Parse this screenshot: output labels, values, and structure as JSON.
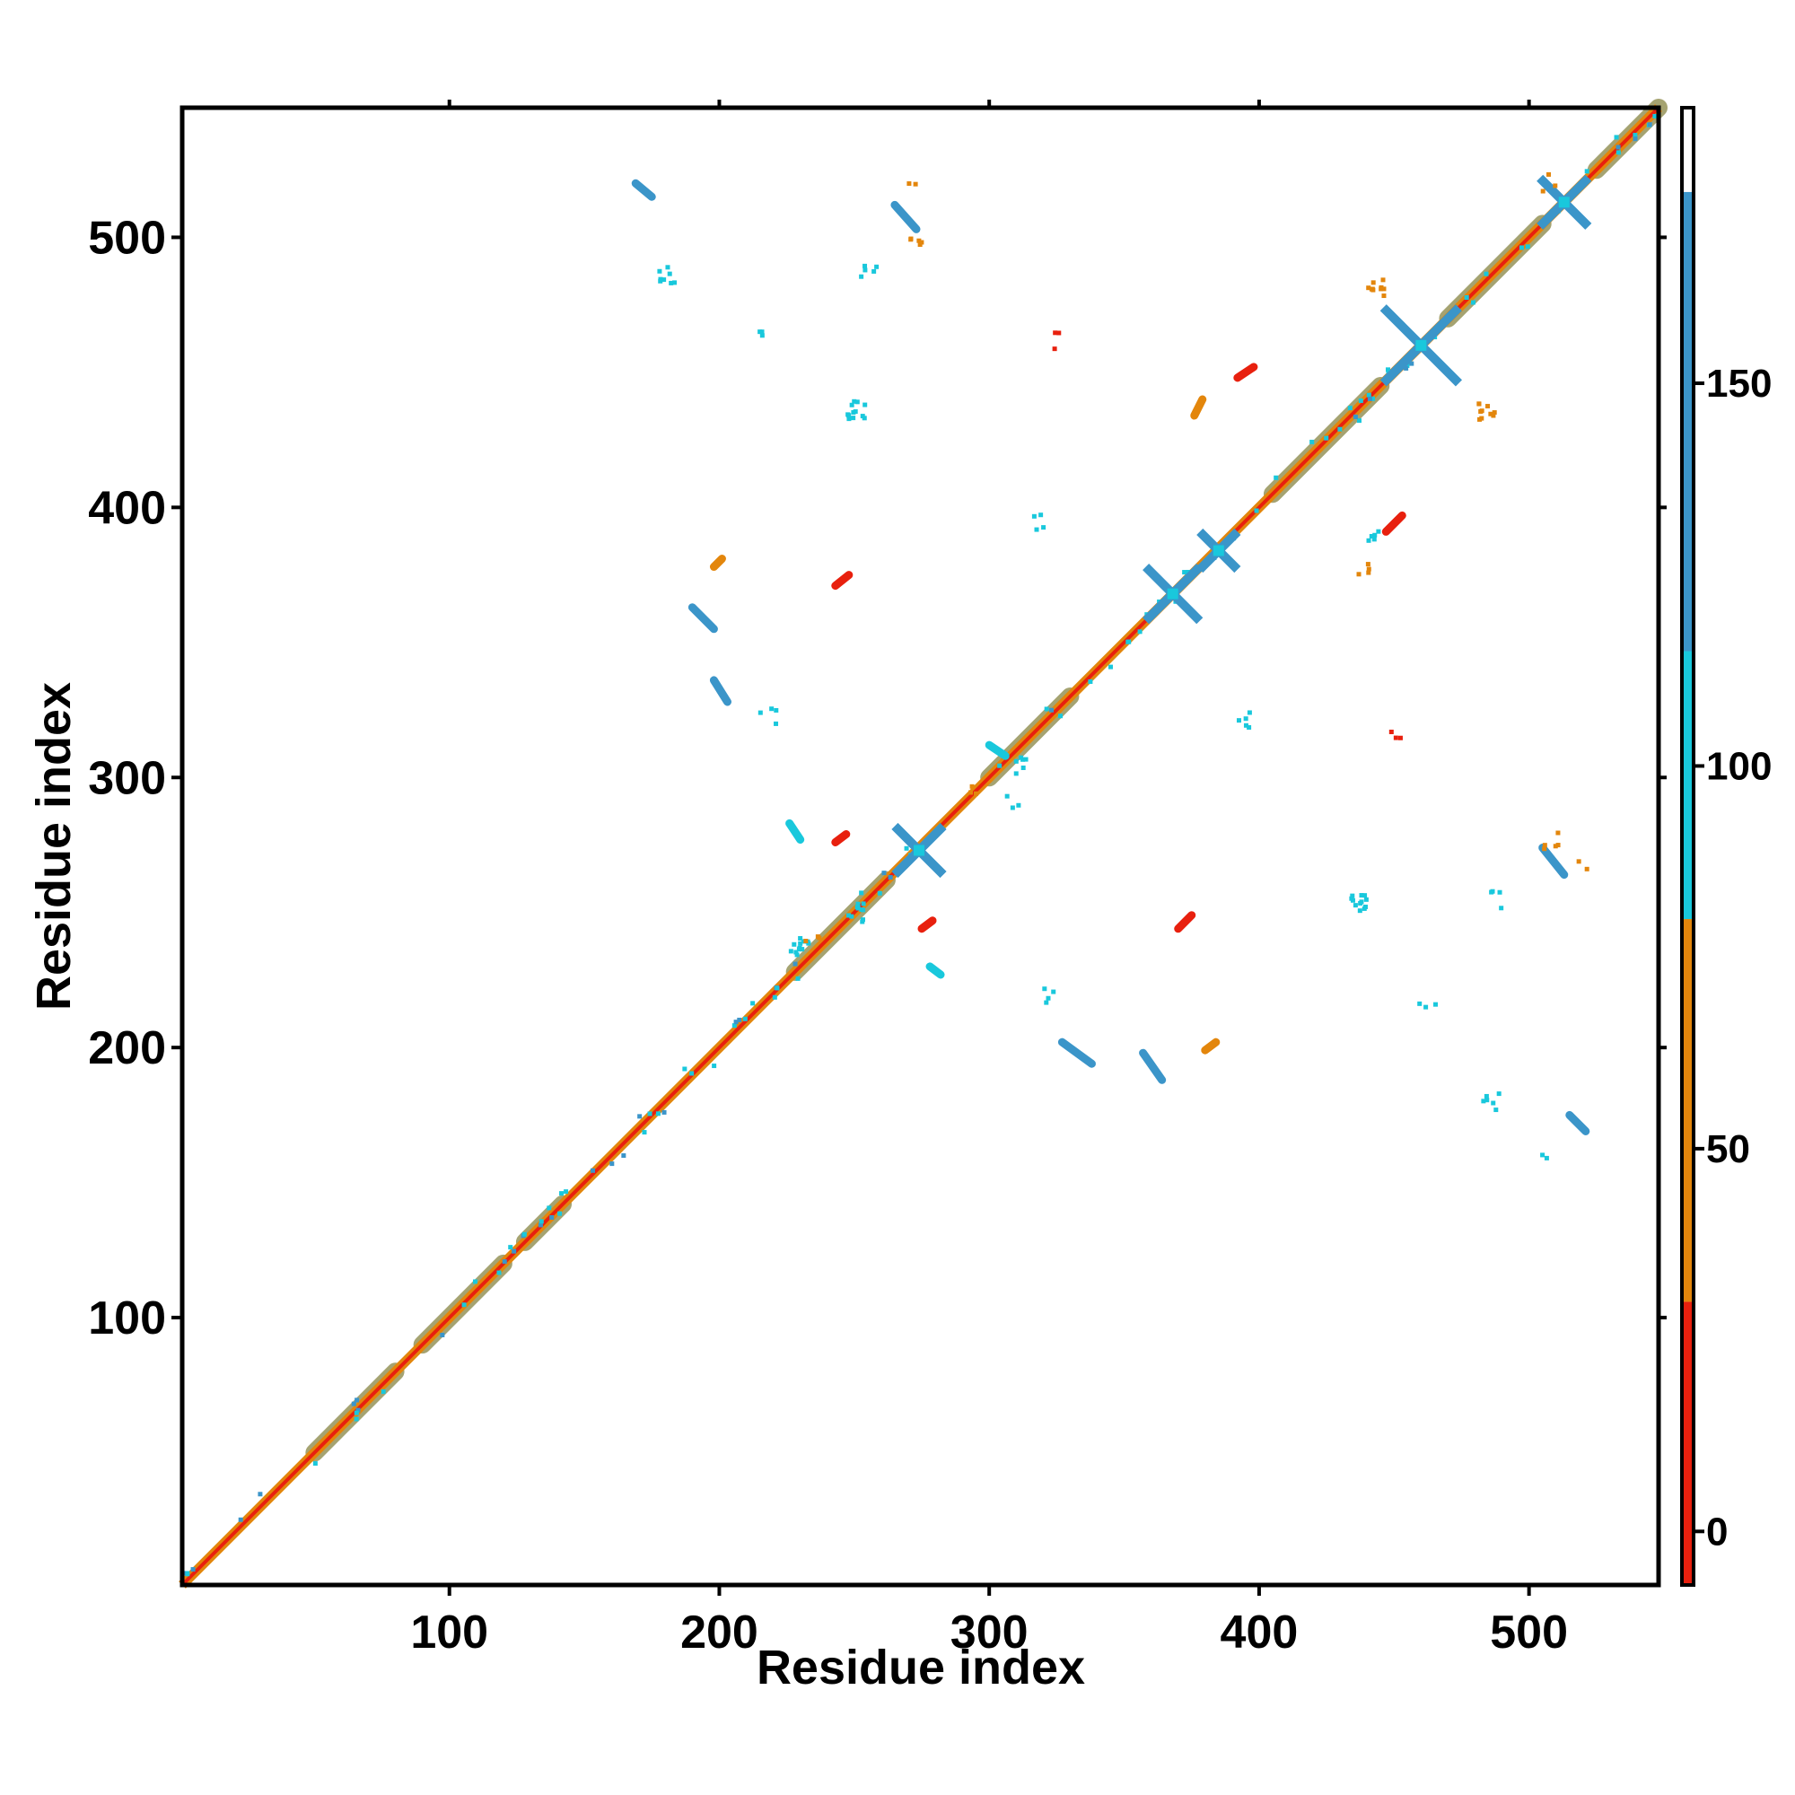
{
  "chart_data": {
    "type": "heatmap",
    "title": "",
    "xlabel": "Residue index",
    "ylabel": "Residue index",
    "xlim": [
      1,
      548
    ],
    "ylim": [
      1,
      548
    ],
    "x_ticks": [
      100,
      200,
      300,
      400,
      500
    ],
    "y_ticks": [
      100,
      200,
      300,
      400,
      500
    ],
    "grid": false,
    "colorbar": {
      "range": [
        -7,
        186
      ],
      "ticks": [
        0,
        50,
        100,
        150
      ],
      "bands": [
        {
          "from": -7,
          "to": 30,
          "color": "#e8200e"
        },
        {
          "from": 30,
          "to": 80,
          "color": "#e3860c"
        },
        {
          "from": 80,
          "to": 115,
          "color": "#19c8dc"
        },
        {
          "from": 115,
          "to": 175,
          "color": "#3b95c9"
        },
        {
          "from": 175,
          "to": 186,
          "color": "#ffffff"
        }
      ]
    },
    "colors": {
      "red": "#e8200e",
      "orange": "#e3860c",
      "olive": "#9c9a62",
      "cyan": "#19c8dc",
      "steel_blue": "#3b95c9"
    },
    "diagonal": {
      "from": 1,
      "to": 548,
      "broad_segments": [
        [
          50,
          80
        ],
        [
          90,
          120
        ],
        [
          128,
          142
        ],
        [
          228,
          262
        ],
        [
          300,
          330
        ],
        [
          405,
          445
        ],
        [
          470,
          505
        ],
        [
          525,
          548
        ]
      ]
    },
    "features": [
      {
        "type": "segment",
        "x1": 169,
        "y1": 520,
        "x2": 175,
        "y2": 515,
        "color": "steel_blue"
      },
      {
        "type": "segment",
        "x1": 265,
        "y1": 512,
        "x2": 273,
        "y2": 503,
        "color": "steel_blue"
      },
      {
        "type": "segment",
        "x1": 190,
        "y1": 363,
        "x2": 198,
        "y2": 355,
        "color": "steel_blue"
      },
      {
        "type": "segment",
        "x1": 198,
        "y1": 336,
        "x2": 203,
        "y2": 328,
        "color": "steel_blue"
      },
      {
        "type": "segment",
        "x1": 243,
        "y1": 371,
        "x2": 248,
        "y2": 375,
        "color": "red"
      },
      {
        "type": "segment",
        "x1": 243,
        "y1": 276,
        "x2": 247,
        "y2": 279,
        "color": "red"
      },
      {
        "type": "segment",
        "x1": 275,
        "y1": 244,
        "x2": 279,
        "y2": 247,
        "color": "red"
      },
      {
        "type": "segment",
        "x1": 370,
        "y1": 244,
        "x2": 375,
        "y2": 249,
        "color": "red"
      },
      {
        "type": "segment",
        "x1": 392,
        "y1": 448,
        "x2": 398,
        "y2": 452,
        "color": "red"
      },
      {
        "type": "segment",
        "x1": 447,
        "y1": 391,
        "x2": 453,
        "y2": 397,
        "color": "red"
      },
      {
        "type": "segment",
        "x1": 327,
        "y1": 202,
        "x2": 338,
        "y2": 194,
        "color": "steel_blue"
      },
      {
        "type": "segment",
        "x1": 357,
        "y1": 198,
        "x2": 364,
        "y2": 188,
        "color": "steel_blue"
      },
      {
        "type": "segment",
        "x1": 505,
        "y1": 274,
        "x2": 513,
        "y2": 264,
        "color": "steel_blue"
      },
      {
        "type": "segment",
        "x1": 515,
        "y1": 175,
        "x2": 521,
        "y2": 169,
        "color": "steel_blue"
      },
      {
        "type": "segment",
        "x1": 380,
        "y1": 199,
        "x2": 384,
        "y2": 202,
        "color": "orange"
      },
      {
        "type": "segment",
        "x1": 198,
        "y1": 378,
        "x2": 201,
        "y2": 381,
        "color": "orange"
      },
      {
        "type": "segment",
        "x1": 226,
        "y1": 283,
        "x2": 230,
        "y2": 277,
        "color": "cyan"
      },
      {
        "type": "segment",
        "x1": 278,
        "y1": 230,
        "x2": 282,
        "y2": 227,
        "color": "cyan"
      },
      {
        "type": "segment",
        "x1": 300,
        "y1": 312,
        "x2": 306,
        "y2": 308,
        "color": "cyan"
      },
      {
        "type": "segment",
        "x1": 376,
        "y1": 434,
        "x2": 379,
        "y2": 440,
        "color": "orange"
      },
      {
        "type": "cross",
        "cx": 274,
        "cy": 273,
        "half": 9,
        "color": "steel_blue"
      },
      {
        "type": "cross",
        "cx": 368,
        "cy": 368,
        "half": 10,
        "color": "steel_blue"
      },
      {
        "type": "cross",
        "cx": 385,
        "cy": 384,
        "half": 7,
        "color": "steel_blue"
      },
      {
        "type": "cross",
        "cx": 460,
        "cy": 460,
        "half": 14,
        "color": "steel_blue"
      },
      {
        "type": "cross",
        "cx": 513,
        "cy": 513,
        "half": 9,
        "color": "steel_blue"
      },
      {
        "type": "cluster",
        "x": 181,
        "y": 486,
        "color": "cyan",
        "n": 8
      },
      {
        "type": "cluster",
        "x": 256,
        "y": 488,
        "color": "cyan",
        "n": 5
      },
      {
        "type": "cluster",
        "x": 251,
        "y": 436,
        "color": "cyan",
        "n": 12
      },
      {
        "type": "cluster",
        "x": 216,
        "y": 464,
        "color": "cyan",
        "n": 3
      },
      {
        "type": "cluster",
        "x": 324,
        "y": 462,
        "color": "red",
        "n": 3
      },
      {
        "type": "cluster",
        "x": 443,
        "y": 481,
        "color": "orange",
        "n": 10
      },
      {
        "type": "cluster",
        "x": 484,
        "y": 436,
        "color": "orange",
        "n": 10
      },
      {
        "type": "cluster",
        "x": 439,
        "y": 376,
        "color": "orange",
        "n": 4
      },
      {
        "type": "cluster",
        "x": 441,
        "y": 391,
        "color": "cyan",
        "n": 5
      },
      {
        "type": "cluster",
        "x": 317,
        "y": 395,
        "color": "cyan",
        "n": 4
      },
      {
        "type": "cluster",
        "x": 396,
        "y": 322,
        "color": "cyan",
        "n": 5
      },
      {
        "type": "cluster",
        "x": 450,
        "y": 318,
        "color": "red",
        "n": 3
      },
      {
        "type": "cluster",
        "x": 313,
        "y": 304,
        "color": "cyan",
        "n": 6
      },
      {
        "type": "cluster",
        "x": 308,
        "y": 291,
        "color": "cyan",
        "n": 3
      },
      {
        "type": "cluster",
        "x": 437,
        "y": 254,
        "color": "cyan",
        "n": 12
      },
      {
        "type": "cluster",
        "x": 488,
        "y": 255,
        "color": "cyan",
        "n": 4
      },
      {
        "type": "cluster",
        "x": 508,
        "y": 276,
        "color": "orange",
        "n": 5
      },
      {
        "type": "cluster",
        "x": 520,
        "y": 268,
        "color": "orange",
        "n": 2
      },
      {
        "type": "cluster",
        "x": 230,
        "y": 237,
        "color": "cyan",
        "n": 12
      },
      {
        "type": "cluster",
        "x": 250,
        "y": 250,
        "color": "cyan",
        "n": 10
      },
      {
        "type": "cluster",
        "x": 321,
        "y": 219,
        "color": "cyan",
        "n": 4
      },
      {
        "type": "cluster",
        "x": 462,
        "y": 215,
        "color": "cyan",
        "n": 3
      },
      {
        "type": "cluster",
        "x": 486,
        "y": 180,
        "color": "cyan",
        "n": 6
      },
      {
        "type": "cluster",
        "x": 507,
        "y": 160,
        "color": "cyan",
        "n": 2
      },
      {
        "type": "cluster",
        "x": 218,
        "y": 323,
        "color": "cyan",
        "n": 4
      },
      {
        "type": "cluster",
        "x": 272,
        "y": 500,
        "color": "orange",
        "n": 5
      },
      {
        "type": "cluster",
        "x": 270,
        "y": 518,
        "color": "orange",
        "n": 2
      },
      {
        "type": "cluster",
        "x": 507,
        "y": 520,
        "color": "orange",
        "n": 3
      },
      {
        "type": "cluster",
        "x": 235,
        "y": 242,
        "color": "orange",
        "n": 3
      },
      {
        "type": "cluster",
        "x": 292,
        "y": 296,
        "color": "orange",
        "n": 3
      }
    ]
  }
}
